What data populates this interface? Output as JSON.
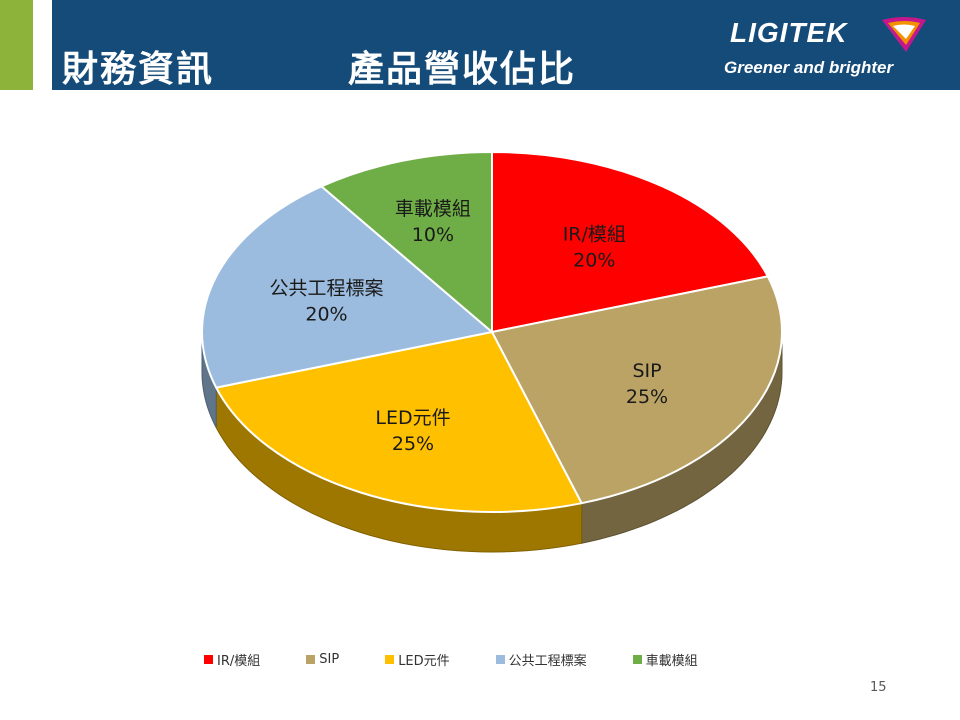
{
  "header": {
    "title": "財務資訊",
    "subtitle": "產品營收佔比",
    "logo_name": "LIGITEK",
    "logo_tagline": "Greener and brighter"
  },
  "colors": {
    "accent_bar": "#8db33a",
    "header_bg": "#154b78"
  },
  "chart_data": {
    "type": "pie",
    "title": "",
    "slices": [
      {
        "label": "IR/模組",
        "value": 20,
        "value_label": "20%",
        "color": "#ff0000",
        "label_color": "#1a1a1a"
      },
      {
        "label": "SIP",
        "value": 25,
        "value_label": "25%",
        "color": "#baa365",
        "label_color": "#1a1a1a"
      },
      {
        "label": "LED元件",
        "value": 25,
        "value_label": "25%",
        "color": "#ffc000",
        "label_color": "#1a1a1a"
      },
      {
        "label": "公共工程標案",
        "value": 20,
        "value_label": "20%",
        "color": "#9bbcde",
        "label_color": "#1a1a1a"
      },
      {
        "label": "車載模組",
        "value": 10,
        "value_label": "10%",
        "color": "#6fae47",
        "label_color": "#1a1a1a"
      }
    ],
    "legend_position": "bottom"
  },
  "footer": {
    "page_number": "15"
  }
}
